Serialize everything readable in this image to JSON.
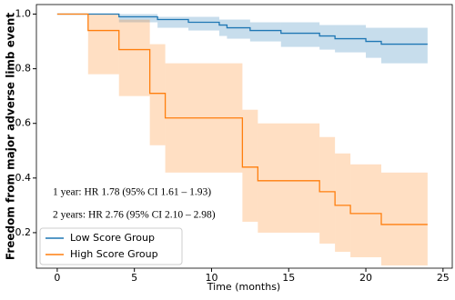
{
  "chart_data": {
    "type": "step",
    "xlabel": "Time (months)",
    "ylabel": "Freedom from major adverse limb event",
    "xlim": [
      -1.35,
      25.6
    ],
    "ylim": [
      0.07,
      1.035
    ],
    "xticks": [
      0,
      5,
      10,
      15,
      20,
      25
    ],
    "yticks": [
      0.2,
      0.4,
      0.6,
      0.8,
      {
        "value": 1,
        "label": "1.0"
      }
    ],
    "legend": "lower left",
    "annotations": [
      "1 year: HR 1.78 (95% CI 1.61 – 1.93)",
      "2 years: HR 2.76 (95% CI 2.10 – 2.98)"
    ],
    "series": [
      {
        "name": "Low Score Group",
        "color": "#1f77b4",
        "x": [
          0,
          4,
          6.5,
          8.5,
          10.5,
          11,
          12.5,
          14.5,
          17,
          18,
          20,
          21,
          24
        ],
        "values": [
          1,
          0.99,
          0.98,
          0.97,
          0.96,
          0.95,
          0.94,
          0.93,
          0.92,
          0.91,
          0.9,
          0.89,
          0.89
        ],
        "ci_lower": [
          1,
          0.97,
          0.95,
          0.94,
          0.92,
          0.91,
          0.9,
          0.88,
          0.87,
          0.86,
          0.84,
          0.82,
          0.82
        ],
        "ci_upper": [
          1,
          1,
          0.99,
          0.99,
          0.98,
          0.98,
          0.97,
          0.97,
          0.96,
          0.96,
          0.95,
          0.95,
          0.95
        ]
      },
      {
        "name": "High Score Group",
        "color": "#ff7f0e",
        "x": [
          0,
          2,
          4,
          6,
          7,
          12,
          13,
          17,
          18,
          19,
          21,
          24
        ],
        "values": [
          1,
          0.94,
          0.87,
          0.71,
          0.62,
          0.44,
          0.39,
          0.35,
          0.3,
          0.27,
          0.23,
          0.23
        ],
        "ci_lower": [
          1,
          0.78,
          0.7,
          0.52,
          0.42,
          0.24,
          0.2,
          0.16,
          0.13,
          0.11,
          0.08,
          0.08
        ],
        "ci_upper": [
          1,
          1,
          0.98,
          0.89,
          0.82,
          0.65,
          0.6,
          0.55,
          0.49,
          0.45,
          0.42,
          0.42
        ]
      }
    ]
  }
}
